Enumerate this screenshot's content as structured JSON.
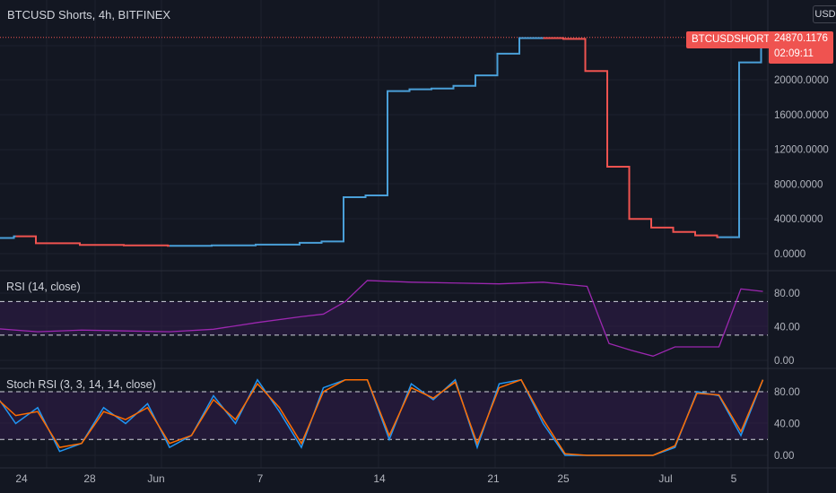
{
  "header": {
    "title": "BTCUSD Shorts, 4h, BITFINEX",
    "currency_label": "USD"
  },
  "last_price": {
    "symbol": "BTCUSDSHORTS",
    "value": "24870.1176",
    "countdown": "02:09:11"
  },
  "indicators": {
    "rsi_label": "RSI (14, close)",
    "stoch_label": "Stoch RSI (3, 3, 14, 14, close)"
  },
  "colors": {
    "background": "#131722",
    "up": "#26a69a",
    "up_candle": "#4a9fd8",
    "down": "#ef5350",
    "rsi_line": "#9c27b0",
    "band_fill": "#311b4a",
    "stoch_k": "#2196f3",
    "stoch_d": "#ff6d00",
    "grid": "#1e222d"
  },
  "chart_data": [
    {
      "type": "line",
      "title": "BTCUSD Shorts, 4h, BITFINEX",
      "x": [
        "May 22",
        "May 23",
        "May 24",
        "May 26",
        "May 28",
        "May 30",
        "Jun 1",
        "Jun 3",
        "Jun 5",
        "Jun 6",
        "Jun 7",
        "Jun 8",
        "Jun 9",
        "Jun 10",
        "Jun 11",
        "Jun 12",
        "Jun 13",
        "Jun 14",
        "Jun 15",
        "Jun 16",
        "Jun 17",
        "Jun 18",
        "Jun 19",
        "Jun 20",
        "Jun 21",
        "Jun 22",
        "Jun 23",
        "Jun 24",
        "Jun 25",
        "Jun 26"
      ],
      "series": [
        {
          "values": [
            1800,
            2000,
            1200,
            1000,
            950,
            900,
            950,
            1050,
            1250,
            1400,
            6500,
            6700,
            18700,
            18900,
            19000,
            19300,
            20500,
            23000,
            24800,
            24800,
            24700,
            21000,
            10000,
            4000,
            3000,
            2500,
            2100,
            1900,
            22000,
            24870
          ]
        }
      ],
      "y_ticks": [
        "0.0000",
        "4000.0000",
        "8000.0000",
        "12000.0000",
        "16000.0000",
        "20000.0000",
        "24000.0000"
      ],
      "ylim": [
        -1000,
        28000
      ],
      "x_tick_labels": [
        "24",
        "28",
        "Jun",
        "7",
        "14",
        "21",
        "25",
        "Jul",
        "5"
      ]
    },
    {
      "type": "line",
      "title": "RSI (14, close)",
      "x": [
        "May 22",
        "May 24",
        "May 26",
        "May 28",
        "May 30",
        "Jun 1",
        "Jun 3",
        "Jun 5",
        "Jun 6",
        "Jun 7",
        "Jun 8",
        "Jun 10",
        "Jun 12",
        "Jun 14",
        "Jun 16",
        "Jun 18",
        "Jun 19",
        "Jun 20",
        "Jun 21",
        "Jun 22",
        "Jun 23",
        "Jun 24",
        "Jun 25",
        "Jun 26"
      ],
      "series": [
        {
          "values": [
            38,
            34,
            36,
            35,
            34,
            37,
            45,
            52,
            55,
            70,
            95,
            93,
            92,
            91,
            93,
            88,
            20,
            12,
            5,
            16,
            16,
            16,
            85,
            82
          ]
        }
      ],
      "y_ticks": [
        "0.00",
        "40.00",
        "80.00"
      ],
      "ylim": [
        -5,
        100
      ],
      "bands": [
        30,
        70
      ]
    },
    {
      "type": "line",
      "title": "Stoch RSI (3, 3, 14, 14, close)",
      "x": [
        "May 22",
        "May 23",
        "May 24",
        "May 25",
        "May 26",
        "May 27",
        "May 28",
        "May 29",
        "May 30",
        "May 31",
        "Jun 1",
        "Jun 2",
        "Jun 3",
        "Jun 4",
        "Jun 5",
        "Jun 6",
        "Jun 7",
        "Jun 8",
        "Jun 9",
        "Jun 10",
        "Jun 11",
        "Jun 12",
        "Jun 13",
        "Jun 14",
        "Jun 15",
        "Jun 16",
        "Jun 17",
        "Jun 18",
        "Jun 19",
        "Jun 20",
        "Jun 21",
        "Jun 22",
        "Jun 23",
        "Jun 24",
        "Jun 25",
        "Jun 26"
      ],
      "series": [
        {
          "name": "K",
          "values": [
            80,
            40,
            60,
            5,
            15,
            60,
            40,
            65,
            10,
            25,
            75,
            40,
            95,
            55,
            10,
            85,
            95,
            95,
            20,
            90,
            70,
            95,
            10,
            90,
            95,
            40,
            0,
            0,
            0,
            0,
            0,
            10,
            80,
            75,
            25,
            95
          ]
        },
        {
          "name": "D",
          "values": [
            75,
            50,
            55,
            10,
            15,
            55,
            45,
            60,
            15,
            25,
            70,
            45,
            90,
            60,
            15,
            80,
            95,
            95,
            25,
            85,
            72,
            92,
            15,
            85,
            95,
            45,
            2,
            0,
            0,
            0,
            0,
            12,
            78,
            76,
            30,
            95
          ]
        }
      ],
      "y_ticks": [
        "0.00",
        "40.00",
        "80.00"
      ],
      "ylim": [
        -10,
        110
      ],
      "bands": [
        20,
        80
      ]
    }
  ]
}
